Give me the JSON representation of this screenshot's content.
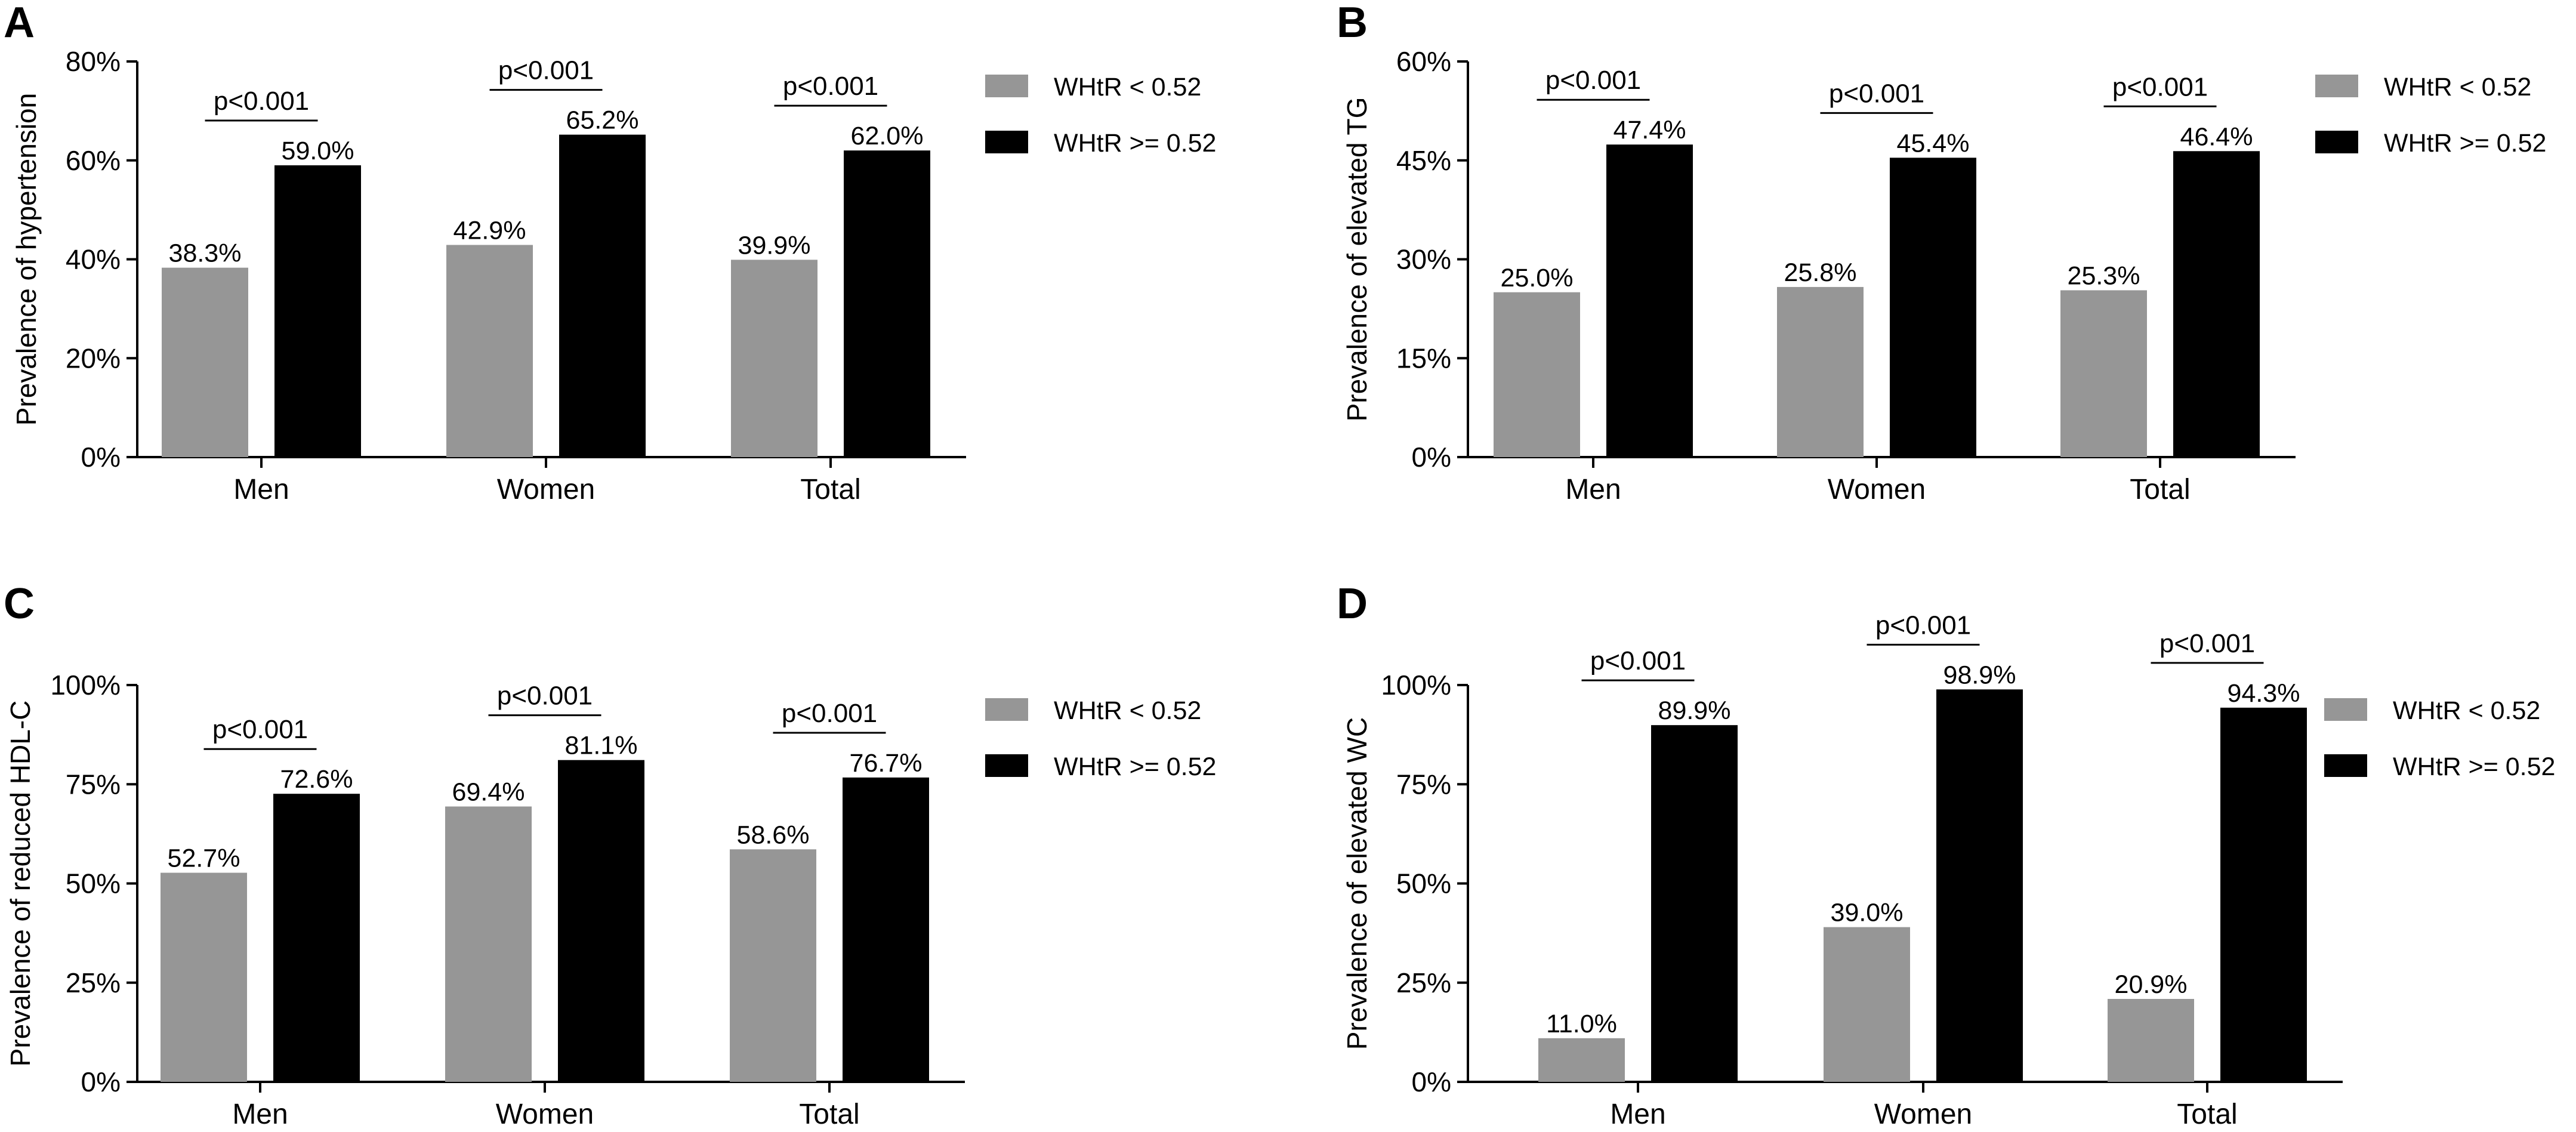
{
  "colors": {
    "low": "#969696",
    "high": "#000000",
    "axis": "#000000"
  },
  "chart_data": [
    {
      "panel": "A",
      "type": "bar",
      "ylabel": "Prevalence of hypertension",
      "ylim": [
        0,
        80
      ],
      "yticks": [
        "0%",
        "20%",
        "40%",
        "60%",
        "80%"
      ],
      "categories": [
        "Men",
        "Women",
        "Total"
      ],
      "series": [
        {
          "name": "WHtR < 0.52",
          "values": [
            38.3,
            42.9,
            39.9
          ],
          "labels": [
            "38.3%",
            "42.9%",
            "39.9%"
          ]
        },
        {
          "name": "WHtR >= 0.52",
          "values": [
            59.0,
            65.2,
            62.0
          ],
          "labels": [
            "59.0%",
            "65.2%",
            "62.0%"
          ]
        }
      ],
      "pvalues": [
        "p<0.001",
        "p<0.001",
        "p<0.001"
      ],
      "legend_position": "top-right"
    },
    {
      "panel": "B",
      "type": "bar",
      "ylabel": "Prevalence of elevated TG",
      "ylim": [
        0,
        60
      ],
      "yticks": [
        "0%",
        "15%",
        "30%",
        "45%",
        "60%"
      ],
      "categories": [
        "Men",
        "Women",
        "Total"
      ],
      "series": [
        {
          "name": "WHtR < 0.52",
          "values": [
            25.0,
            25.8,
            25.3
          ],
          "labels": [
            "25.0%",
            "25.8%",
            "25.3%"
          ]
        },
        {
          "name": "WHtR >= 0.52",
          "values": [
            47.4,
            45.4,
            46.4
          ],
          "labels": [
            "47.4%",
            "45.4%",
            "46.4%"
          ]
        }
      ],
      "pvalues": [
        "p<0.001",
        "p<0.001",
        "p<0.001"
      ],
      "legend_position": "top-right"
    },
    {
      "panel": "C",
      "type": "bar",
      "ylabel": "Prevalence of reduced HDL-C",
      "ylim": [
        0,
        100
      ],
      "yticks": [
        "0%",
        "25%",
        "50%",
        "75%",
        "100%"
      ],
      "categories": [
        "Men",
        "Women",
        "Total"
      ],
      "series": [
        {
          "name": "WHtR < 0.52",
          "values": [
            52.7,
            69.4,
            58.6
          ],
          "labels": [
            "52.7%",
            "69.4%",
            "58.6%"
          ]
        },
        {
          "name": "WHtR >= 0.52",
          "values": [
            72.6,
            81.1,
            76.7
          ],
          "labels": [
            "72.6%",
            "81.1%",
            "76.7%"
          ]
        }
      ],
      "pvalues": [
        "p<0.001",
        "p<0.001",
        "p<0.001"
      ],
      "legend_position": "top-right"
    },
    {
      "panel": "D",
      "type": "bar",
      "ylabel": "Prevalence of elevated WC",
      "ylim": [
        0,
        100
      ],
      "yticks": [
        "0%",
        "25%",
        "50%",
        "75%",
        "100%"
      ],
      "categories": [
        "Men",
        "Women",
        "Total"
      ],
      "series": [
        {
          "name": "WHtR < 0.52",
          "values": [
            11.0,
            39.0,
            20.9
          ],
          "labels": [
            "11.0%",
            "39.0%",
            "20.9%"
          ]
        },
        {
          "name": "WHtR >= 0.52",
          "values": [
            89.9,
            98.9,
            94.3
          ],
          "labels": [
            "89.9%",
            "98.9%",
            "94.3%"
          ]
        }
      ],
      "pvalues": [
        "p<0.001",
        "p<0.001",
        "p<0.001"
      ],
      "legend_position": "top-right"
    }
  ]
}
